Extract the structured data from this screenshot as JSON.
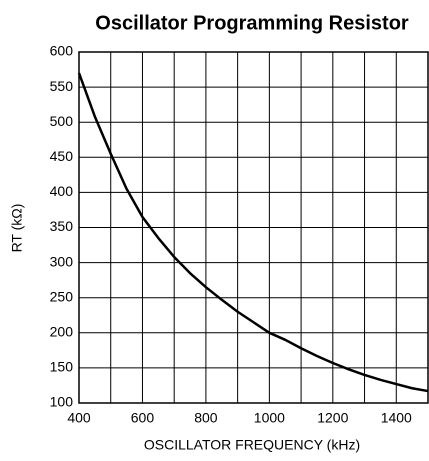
{
  "chart_data": {
    "type": "line",
    "title": "Oscillator Programming Resistor",
    "xlabel": "OSCILLATOR FREQUENCY (kHz)",
    "ylabel": "RT (kΩ)",
    "x": [
      400,
      450,
      500,
      550,
      600,
      650,
      700,
      750,
      800,
      850,
      900,
      950,
      1000,
      1050,
      1100,
      1150,
      1200,
      1250,
      1300,
      1350,
      1400,
      1450,
      1500
    ],
    "series": [
      {
        "color": "#000000",
        "values": [
          570,
          508,
          455,
          405,
          365,
          335,
          308,
          285,
          265,
          247,
          230,
          215,
          200,
          190,
          178,
          167,
          157,
          148,
          140,
          133,
          127,
          121,
          117
        ]
      }
    ],
    "xlim": [
      400,
      1500
    ],
    "xticks": [
      400,
      600,
      800,
      1000,
      1200,
      1400
    ],
    "xgrid": [
      500,
      700,
      900,
      1100,
      1300,
      1500
    ],
    "ylim": [
      100,
      600
    ],
    "yticks": [
      100,
      150,
      200,
      250,
      300,
      350,
      400,
      450,
      500,
      550,
      600
    ],
    "grid": true
  }
}
